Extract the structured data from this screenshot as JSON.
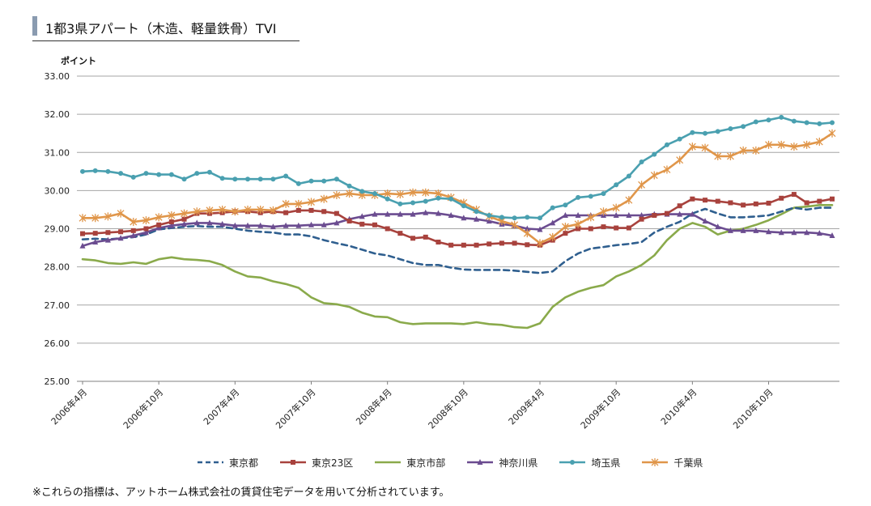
{
  "header": {
    "title": "1都3県アパート（木造、軽量鉄骨）TVI"
  },
  "note": "※これらの指標は、アットホーム株式会社の賃貸住宅データを用いて分析されています。",
  "chart_data": {
    "type": "line",
    "title": "1都3県アパート（木造、軽量鉄骨）TVI",
    "ylabel": "ポイント",
    "xlabel": "",
    "ylim": [
      25,
      33
    ],
    "yticks": [
      "25.00",
      "26.00",
      "27.00",
      "28.00",
      "29.00",
      "30.00",
      "31.00",
      "32.00",
      "33.00"
    ],
    "grid": true,
    "legend_position": "bottom",
    "xtick_labels": [
      {
        "index": 0,
        "label": "2006年4月"
      },
      {
        "index": 6,
        "label": "2006年10月"
      },
      {
        "index": 12,
        "label": "2007年4月"
      },
      {
        "index": 18,
        "label": "2007年10月"
      },
      {
        "index": 24,
        "label": "2008年4月"
      },
      {
        "index": 30,
        "label": "2008年10月"
      },
      {
        "index": 36,
        "label": "2009年4月"
      },
      {
        "index": 42,
        "label": "2009年10月"
      },
      {
        "index": 48,
        "label": "2010年4月"
      },
      {
        "index": 54,
        "label": "2010年10月"
      }
    ],
    "x": [
      "2006-04",
      "2006-05",
      "2006-06",
      "2006-07",
      "2006-08",
      "2006-09",
      "2006-10",
      "2006-11",
      "2006-12",
      "2007-01",
      "2007-02",
      "2007-03",
      "2007-04",
      "2007-05",
      "2007-06",
      "2007-07",
      "2007-08",
      "2007-09",
      "2007-10",
      "2007-11",
      "2007-12",
      "2008-01",
      "2008-02",
      "2008-03",
      "2008-04",
      "2008-05",
      "2008-06",
      "2008-07",
      "2008-08",
      "2008-09",
      "2008-10",
      "2008-11",
      "2008-12",
      "2009-01",
      "2009-02",
      "2009-03",
      "2009-04",
      "2009-05",
      "2009-06",
      "2009-07",
      "2009-08",
      "2009-09",
      "2009-10",
      "2009-11",
      "2009-12",
      "2010-01",
      "2010-02",
      "2010-03",
      "2010-04",
      "2010-05",
      "2010-06",
      "2010-07",
      "2010-08",
      "2010-09",
      "2010-10",
      "2010-11",
      "2010-12",
      "2011-01",
      "2011-02",
      "2011-03"
    ],
    "series": [
      {
        "name": "東京都",
        "color": "#2f5f8f",
        "style": "dashed",
        "marker": "none",
        "values": [
          28.72,
          28.74,
          28.72,
          28.75,
          28.78,
          28.85,
          28.98,
          29.02,
          29.05,
          29.07,
          29.05,
          29.05,
          29.0,
          28.95,
          28.92,
          28.9,
          28.85,
          28.85,
          28.8,
          28.7,
          28.62,
          28.55,
          28.45,
          28.35,
          28.3,
          28.2,
          28.1,
          28.05,
          28.05,
          27.98,
          27.93,
          27.92,
          27.92,
          27.92,
          27.9,
          27.87,
          27.84,
          27.88,
          28.15,
          28.35,
          28.48,
          28.52,
          28.57,
          28.6,
          28.65,
          28.9,
          29.05,
          29.18,
          29.4,
          29.52,
          29.4,
          29.3,
          29.3,
          29.32,
          29.35,
          29.45,
          29.55,
          29.5,
          29.55,
          29.55
        ]
      },
      {
        "name": "東京23区",
        "color": "#a8423d",
        "style": "solid",
        "marker": "square",
        "values": [
          28.87,
          28.88,
          28.9,
          28.92,
          28.95,
          29.0,
          29.1,
          29.18,
          29.25,
          29.4,
          29.4,
          29.42,
          29.45,
          29.45,
          29.42,
          29.45,
          29.42,
          29.48,
          29.48,
          29.45,
          29.4,
          29.2,
          29.12,
          29.1,
          29.0,
          28.88,
          28.75,
          28.78,
          28.65,
          28.57,
          28.57,
          28.57,
          28.6,
          28.62,
          28.62,
          28.58,
          28.57,
          28.7,
          28.88,
          29.0,
          29.0,
          29.05,
          29.02,
          29.02,
          29.25,
          29.35,
          29.4,
          29.6,
          29.78,
          29.75,
          29.72,
          29.68,
          29.62,
          29.65,
          29.67,
          29.8,
          29.9,
          29.68,
          29.72,
          29.78
        ]
      },
      {
        "name": "東京市部",
        "color": "#8aaa4b",
        "style": "solid",
        "marker": "none",
        "values": [
          28.2,
          28.17,
          28.1,
          28.08,
          28.12,
          28.08,
          28.2,
          28.25,
          28.2,
          28.18,
          28.15,
          28.05,
          27.88,
          27.75,
          27.72,
          27.62,
          27.55,
          27.45,
          27.2,
          27.05,
          27.02,
          26.95,
          26.8,
          26.7,
          26.68,
          26.55,
          26.5,
          26.52,
          26.52,
          26.52,
          26.5,
          26.55,
          26.5,
          26.48,
          26.42,
          26.4,
          26.52,
          26.95,
          27.2,
          27.35,
          27.45,
          27.52,
          27.75,
          27.88,
          28.05,
          28.3,
          28.7,
          29.0,
          29.15,
          29.05,
          28.85,
          28.95,
          29.0,
          29.1,
          29.22,
          29.38,
          29.55,
          29.58,
          29.62,
          29.62
        ]
      },
      {
        "name": "神奈川県",
        "color": "#6b4c90",
        "style": "solid",
        "marker": "triangle",
        "values": [
          28.55,
          28.65,
          28.7,
          28.75,
          28.82,
          28.9,
          29.02,
          29.08,
          29.12,
          29.15,
          29.15,
          29.12,
          29.08,
          29.08,
          29.08,
          29.05,
          29.08,
          29.08,
          29.1,
          29.1,
          29.15,
          29.25,
          29.32,
          29.38,
          29.38,
          29.38,
          29.38,
          29.42,
          29.4,
          29.35,
          29.28,
          29.25,
          29.2,
          29.12,
          29.08,
          29.0,
          28.98,
          29.15,
          29.35,
          29.35,
          29.35,
          29.35,
          29.35,
          29.35,
          29.35,
          29.38,
          29.38,
          29.38,
          29.38,
          29.2,
          29.05,
          28.95,
          28.95,
          28.95,
          28.92,
          28.9,
          28.9,
          28.9,
          28.88,
          28.82
        ]
      },
      {
        "name": "埼玉県",
        "color": "#4aa0b0",
        "style": "solid",
        "marker": "circle",
        "values": [
          30.5,
          30.52,
          30.5,
          30.45,
          30.35,
          30.45,
          30.42,
          30.42,
          30.3,
          30.45,
          30.48,
          30.32,
          30.3,
          30.3,
          30.3,
          30.3,
          30.38,
          30.18,
          30.25,
          30.25,
          30.3,
          30.12,
          29.98,
          29.92,
          29.78,
          29.65,
          29.68,
          29.72,
          29.8,
          29.78,
          29.6,
          29.45,
          29.35,
          29.3,
          29.28,
          29.3,
          29.28,
          29.55,
          29.62,
          29.82,
          29.85,
          29.92,
          30.15,
          30.38,
          30.75,
          30.95,
          31.2,
          31.35,
          31.52,
          31.5,
          31.55,
          31.62,
          31.68,
          31.8,
          31.85,
          31.92,
          31.82,
          31.78,
          31.75,
          31.78
        ]
      },
      {
        "name": "千葉県",
        "color": "#e0964a",
        "style": "solid",
        "marker": "star",
        "values": [
          29.28,
          29.28,
          29.32,
          29.4,
          29.18,
          29.22,
          29.3,
          29.35,
          29.4,
          29.45,
          29.48,
          29.5,
          29.45,
          29.5,
          29.5,
          29.48,
          29.65,
          29.65,
          29.7,
          29.78,
          29.88,
          29.92,
          29.88,
          29.88,
          29.92,
          29.9,
          29.95,
          29.95,
          29.92,
          29.82,
          29.68,
          29.5,
          29.32,
          29.2,
          29.1,
          28.88,
          28.62,
          28.78,
          29.05,
          29.12,
          29.3,
          29.45,
          29.55,
          29.75,
          30.15,
          30.4,
          30.55,
          30.8,
          31.15,
          31.12,
          30.9,
          30.9,
          31.05,
          31.05,
          31.2,
          31.2,
          31.15,
          31.2,
          31.28,
          31.5
        ]
      }
    ]
  }
}
